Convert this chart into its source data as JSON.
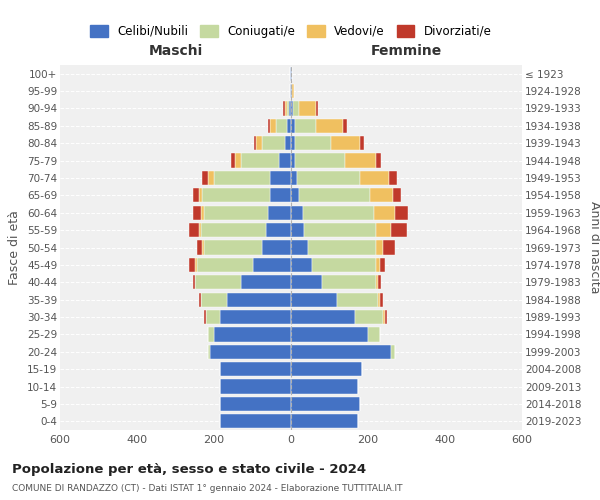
{
  "age_groups": [
    "0-4",
    "5-9",
    "10-14",
    "15-19",
    "20-24",
    "25-29",
    "30-34",
    "35-39",
    "40-44",
    "45-49",
    "50-54",
    "55-59",
    "60-64",
    "65-69",
    "70-74",
    "75-79",
    "80-84",
    "85-89",
    "90-94",
    "95-99",
    "100+"
  ],
  "birth_years": [
    "2019-2023",
    "2014-2018",
    "2009-2013",
    "2004-2008",
    "1999-2003",
    "1994-1998",
    "1989-1993",
    "1984-1988",
    "1979-1983",
    "1974-1978",
    "1969-1973",
    "1964-1968",
    "1959-1963",
    "1954-1958",
    "1949-1953",
    "1944-1948",
    "1939-1943",
    "1934-1938",
    "1929-1933",
    "1924-1928",
    "≤ 1923"
  ],
  "colors": {
    "celibe": "#4472c4",
    "coniugato": "#c5d9a0",
    "vedovo": "#f0c060",
    "divorziato": "#c0392b"
  },
  "maschi": {
    "celibe": [
      185,
      185,
      185,
      185,
      210,
      200,
      185,
      165,
      130,
      100,
      75,
      65,
      60,
      55,
      55,
      30,
      15,
      10,
      5,
      3,
      2
    ],
    "coniugato": [
      0,
      0,
      0,
      0,
      5,
      15,
      35,
      70,
      120,
      145,
      150,
      170,
      165,
      175,
      145,
      100,
      60,
      30,
      5,
      0,
      0
    ],
    "vedovo": [
      0,
      0,
      0,
      0,
      0,
      0,
      0,
      0,
      0,
      5,
      5,
      5,
      10,
      10,
      15,
      15,
      15,
      15,
      5,
      0,
      0
    ],
    "divorziato": [
      0,
      0,
      0,
      0,
      0,
      0,
      5,
      5,
      5,
      15,
      15,
      25,
      20,
      15,
      15,
      10,
      5,
      5,
      5,
      0,
      0
    ]
  },
  "femmine": {
    "nubile": [
      175,
      180,
      175,
      185,
      260,
      200,
      165,
      120,
      80,
      55,
      45,
      35,
      30,
      20,
      15,
      10,
      10,
      10,
      5,
      3,
      2
    ],
    "coniugata": [
      0,
      0,
      0,
      0,
      10,
      30,
      75,
      105,
      140,
      165,
      175,
      185,
      185,
      185,
      165,
      130,
      95,
      55,
      15,
      0,
      0
    ],
    "vedova": [
      0,
      0,
      0,
      0,
      0,
      0,
      5,
      5,
      5,
      10,
      20,
      40,
      55,
      60,
      75,
      80,
      75,
      70,
      45,
      5,
      0
    ],
    "divorziata": [
      0,
      0,
      0,
      0,
      0,
      0,
      5,
      10,
      10,
      15,
      30,
      40,
      35,
      20,
      20,
      15,
      10,
      10,
      5,
      0,
      0
    ]
  },
  "title": "Popolazione per età, sesso e stato civile - 2024",
  "subtitle": "COMUNE DI RANDAZZO (CT) - Dati ISTAT 1° gennaio 2024 - Elaborazione TUTTITALIA.IT",
  "xlabel_maschi": "Maschi",
  "xlabel_femmine": "Femmine",
  "ylabel": "Fasce di età",
  "ylabel_right": "Anni di nascita",
  "xlim": 600,
  "legend_labels": [
    "Celibi/Nubili",
    "Coniugati/e",
    "Vedovi/e",
    "Divorziati/e"
  ],
  "background_color": "#f0f0f0"
}
